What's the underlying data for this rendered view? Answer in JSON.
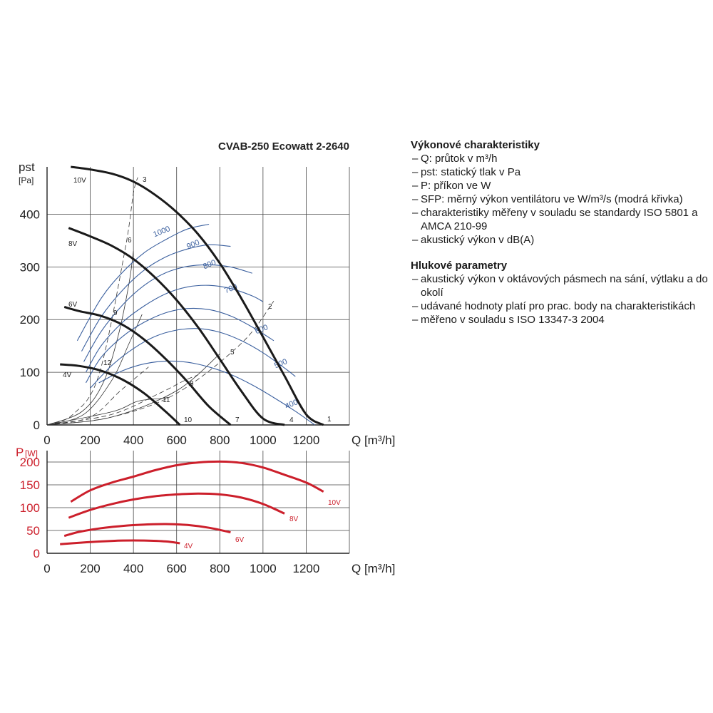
{
  "chart_data": [
    {
      "type": "line",
      "title": "CVAB-250 Ecowatt 2-2640",
      "ylabel_line1": "pst",
      "ylabel_line2": "[Pa]",
      "xlabel": "Q [m³/h]",
      "xlim": [
        0,
        1400
      ],
      "ylim": [
        0,
        490
      ],
      "xticks": [
        0,
        200,
        400,
        600,
        800,
        1000,
        1200
      ],
      "yticks": [
        0,
        100,
        200,
        300,
        400
      ],
      "series": [
        {
          "name": "10V",
          "x": [
            110,
            200,
            300,
            400,
            500,
            600,
            700,
            800,
            900,
            1000,
            1100,
            1200,
            1280
          ],
          "y": [
            490,
            485,
            477,
            462,
            437,
            404,
            362,
            307,
            240,
            167,
            93,
            20,
            0
          ]
        },
        {
          "name": "8V",
          "x": [
            100,
            200,
            300,
            400,
            500,
            600,
            700,
            800,
            900,
            1000,
            1100
          ],
          "y": [
            374,
            358,
            340,
            315,
            280,
            237,
            185,
            125,
            64,
            12,
            0
          ]
        },
        {
          "name": "6V",
          "x": [
            80,
            150,
            250,
            350,
            450,
            550,
            650,
            750,
            850
          ],
          "y": [
            224,
            216,
            207,
            190,
            162,
            125,
            82,
            35,
            0
          ]
        },
        {
          "name": "4V",
          "x": [
            60,
            150,
            250,
            350,
            450,
            550,
            615
          ],
          "y": [
            115,
            112,
            103,
            86,
            60,
            25,
            0
          ]
        }
      ],
      "voltage_labels": [
        "10V",
        "8V",
        "6V",
        "4V"
      ],
      "sfp_curves": [
        {
          "label": "1000",
          "x": [
            140,
            250,
            350,
            450,
            550,
            650,
            750
          ],
          "y": [
            160,
            240,
            290,
            327,
            352,
            372,
            381
          ]
        },
        {
          "label": "900",
          "x": [
            160,
            250,
            350,
            450,
            550,
            650,
            750,
            850
          ],
          "y": [
            140,
            205,
            256,
            294,
            319,
            334,
            342,
            339
          ]
        },
        {
          "label": "800",
          "x": [
            170,
            250,
            350,
            450,
            550,
            650,
            750,
            850,
            950
          ],
          "y": [
            120,
            177,
            228,
            265,
            289,
            301,
            304,
            300,
            288
          ]
        },
        {
          "label": "700",
          "x": [
            180,
            250,
            350,
            450,
            550,
            650,
            750,
            850,
            950,
            1000
          ],
          "y": [
            100,
            150,
            195,
            226,
            249,
            262,
            265,
            259,
            245,
            234
          ]
        },
        {
          "label": "600",
          "x": [
            180,
            250,
            350,
            450,
            550,
            650,
            750,
            850,
            950,
            1050
          ],
          "y": [
            80,
            128,
            168,
            195,
            213,
            221,
            219,
            207,
            186,
            160
          ]
        },
        {
          "label": "500",
          "x": [
            200,
            300,
            400,
            500,
            600,
            700,
            800,
            900,
            1000,
            1100,
            1150
          ],
          "y": [
            70,
            113,
            145,
            168,
            180,
            183,
            176,
            160,
            137,
            108,
            92
          ]
        },
        {
          "label": "400",
          "x": [
            240,
            350,
            450,
            550,
            650,
            750,
            850,
            950,
            1050,
            1150,
            1240
          ],
          "y": [
            80,
            103,
            116,
            121,
            119,
            110,
            96,
            76,
            52,
            26,
            0
          ]
        }
      ],
      "system_curves": [
        {
          "label": "3",
          "x": [
            0,
            120,
            240,
            360,
            400,
            420
          ],
          "y": [
            0,
            20,
            95,
            330,
            440,
            470
          ]
        },
        {
          "label": "6",
          "x": [
            0,
            160,
            260,
            330,
            380,
            400
          ],
          "y": [
            0,
            25,
            80,
            170,
            270,
            330
          ]
        },
        {
          "label": "9",
          "x": [
            0,
            170,
            300,
            380,
            440
          ],
          "y": [
            0,
            20,
            85,
            155,
            210
          ]
        },
        {
          "label": "12",
          "x": [
            0,
            200,
            340,
            470
          ],
          "y": [
            0,
            15,
            65,
            110
          ]
        },
        {
          "label": "2",
          "x": [
            0,
            300,
            600,
            900,
            1050
          ],
          "y": [
            0,
            15,
            60,
            155,
            235
          ]
        },
        {
          "label": "5",
          "x": [
            0,
            300,
            600,
            800
          ],
          "y": [
            0,
            15,
            65,
            135
          ]
        },
        {
          "label": "8",
          "x": [
            0,
            300,
            520,
            640,
            700
          ],
          "y": [
            0,
            20,
            60,
            85,
            95
          ]
        },
        {
          "label": "11",
          "x": [
            0,
            300,
            420,
            520,
            560
          ],
          "y": [
            0,
            25,
            45,
            50,
            52
          ]
        }
      ],
      "operating_point_labels": [
        "1",
        "2",
        "3",
        "4",
        "5",
        "6",
        "7",
        "8",
        "9",
        "10",
        "11",
        "12"
      ],
      "sfp_color": "#3a5f9e",
      "series_color": "#1a1a1a"
    },
    {
      "type": "line",
      "ylabel_line1": "P",
      "ylabel_line2": "[W]",
      "xlabel": "Q [m³/h]",
      "xlim": [
        0,
        1400
      ],
      "ylim": [
        0,
        225
      ],
      "xticks": [
        0,
        200,
        400,
        600,
        800,
        1000,
        1200
      ],
      "yticks": [
        0,
        50,
        100,
        150,
        200
      ],
      "series": [
        {
          "name": "10V",
          "x": [
            110,
            200,
            300,
            400,
            500,
            600,
            700,
            800,
            900,
            1000,
            1100,
            1200,
            1280
          ],
          "y": [
            113,
            138,
            155,
            168,
            182,
            193,
            199,
            201,
            198,
            188,
            172,
            155,
            135
          ]
        },
        {
          "name": "8V",
          "x": [
            100,
            200,
            300,
            400,
            500,
            600,
            700,
            800,
            900,
            1000,
            1100
          ],
          "y": [
            78,
            95,
            108,
            118,
            125,
            129,
            131,
            129,
            122,
            108,
            87
          ]
        },
        {
          "name": "6V",
          "x": [
            80,
            150,
            250,
            350,
            450,
            550,
            650,
            750,
            850
          ],
          "y": [
            38,
            47,
            55,
            60,
            63,
            64,
            62,
            56,
            46
          ]
        },
        {
          "name": "4V",
          "x": [
            60,
            150,
            250,
            350,
            450,
            550,
            615
          ],
          "y": [
            20,
            23,
            26,
            28,
            28,
            26,
            22
          ]
        }
      ],
      "series_color": "#cc1f2b"
    }
  ],
  "panel": {
    "section1_title": "Výkonové charakteristiky",
    "section1_items": [
      "Q: průtok v m³/h",
      "pst: statický tlak v Pa",
      "P: příkon ve W",
      "SFP: měrný výkon ventilátoru ve W/m³/s (modrá křivka)",
      "charakteristiky měřeny v souladu se standardy ISO 5801 a AMCA 210-99",
      "akustický výkon v dB(A)"
    ],
    "section2_title": "Hlukové parametry",
    "section2_items": [
      "akustický výkon v oktávových pásmech na sání, výtlaku a do okolí",
      "udávané hodnoty platí pro prac. body na charakteristikách",
      "měřeno v souladu s ISO 13347-3 2004"
    ]
  }
}
